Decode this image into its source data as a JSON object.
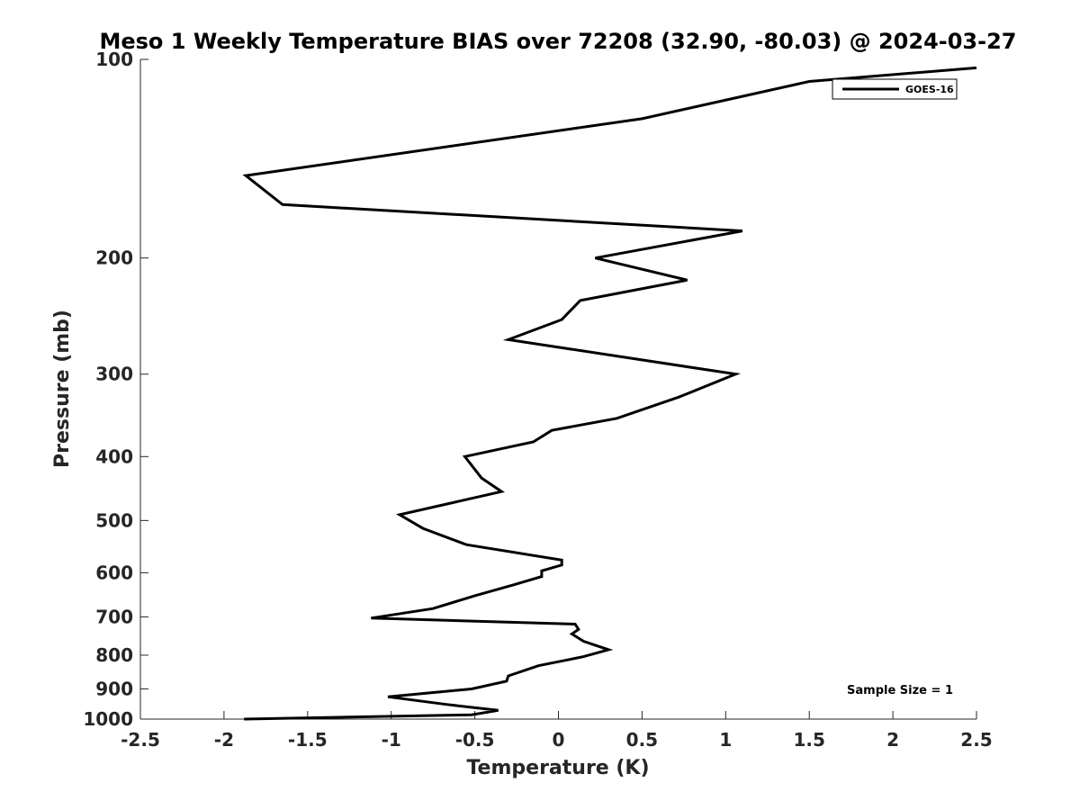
{
  "chart_data": {
    "type": "line",
    "title": "Meso 1 Weekly Temperature BIAS over 72208 (32.90, -80.03) @ 2024-03-27",
    "xlabel": "Temperature (K)",
    "ylabel": "Pressure (mb)",
    "xlim": [
      -2.5,
      2.5
    ],
    "ylim": [
      100,
      1000
    ],
    "y_scale": "log",
    "y_reversed": true,
    "x_ticks": [
      "-2.5",
      "-2",
      "-1.5",
      "-1",
      "-0.5",
      "0",
      "0.5",
      "1",
      "1.5",
      "2",
      "2.5"
    ],
    "y_ticks": [
      "100",
      "200",
      "300",
      "400",
      "500",
      "600",
      "700",
      "800",
      "900",
      "1000"
    ],
    "grid": false,
    "legend_position": "top-right",
    "annotation": "Sample Size = 1",
    "series": [
      {
        "name": "GOES-16",
        "color": "#000000",
        "points": [
          [
            2.5,
            103
          ],
          [
            1.5,
            108
          ],
          [
            0.5,
            123
          ],
          [
            -1.87,
            150
          ],
          [
            -1.65,
            166
          ],
          [
            1.1,
            182
          ],
          [
            0.22,
            200
          ],
          [
            0.77,
            216
          ],
          [
            0.13,
            232
          ],
          [
            0.02,
            248
          ],
          [
            -0.3,
            266
          ],
          [
            1.06,
            300
          ],
          [
            0.72,
            325
          ],
          [
            0.35,
            350
          ],
          [
            -0.04,
            365
          ],
          [
            -0.15,
            380
          ],
          [
            -0.56,
            400
          ],
          [
            -0.46,
            431
          ],
          [
            -0.34,
            452
          ],
          [
            -0.95,
            490
          ],
          [
            -0.81,
            514
          ],
          [
            -0.55,
            544
          ],
          [
            0.02,
            574
          ],
          [
            0.02,
            584
          ],
          [
            -0.1,
            596
          ],
          [
            -0.1,
            608
          ],
          [
            -0.27,
            626
          ],
          [
            -0.5,
            650
          ],
          [
            -0.75,
            680
          ],
          [
            -1.12,
            703
          ],
          [
            0.1,
            718
          ],
          [
            0.12,
            731
          ],
          [
            0.08,
            743
          ],
          [
            0.15,
            762
          ],
          [
            0.3,
            785
          ],
          [
            0.15,
            804
          ],
          [
            -0.12,
            830
          ],
          [
            -0.3,
            860
          ],
          [
            -0.31,
            876
          ],
          [
            -0.52,
            900
          ],
          [
            -1.02,
            925
          ],
          [
            -0.67,
            950
          ],
          [
            -0.36,
            970
          ],
          [
            -0.52,
            985
          ],
          [
            -1.88,
            1000
          ]
        ]
      }
    ]
  }
}
